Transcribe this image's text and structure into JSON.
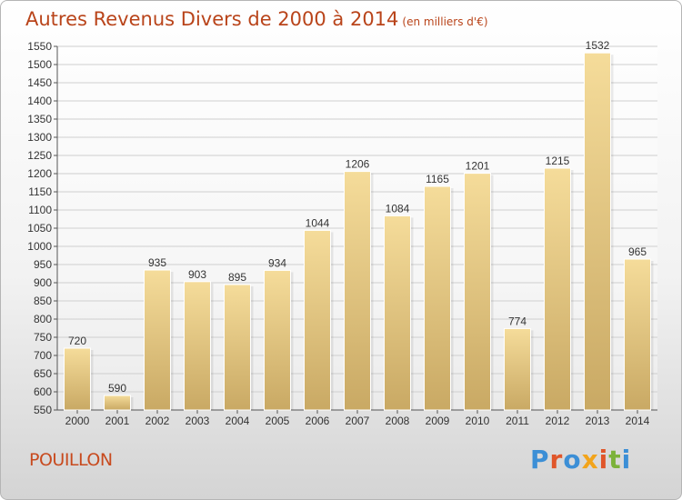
{
  "header": {
    "title": "Autres Revenus Divers de 2000 à 2014",
    "unit": "(en milliers d'€)"
  },
  "footer": {
    "commune": "POUILLON",
    "logo_text": "Proxiti"
  },
  "colors": {
    "title": "#b9441a",
    "bar_light": "#f5dc9a",
    "bar_dark": "#c9a964",
    "grid": "#cfcfcf"
  },
  "chart_data": {
    "type": "bar",
    "categories": [
      "2000",
      "2001",
      "2002",
      "2003",
      "2004",
      "2005",
      "2006",
      "2007",
      "2008",
      "2009",
      "2010",
      "2011",
      "2012",
      "2013",
      "2014"
    ],
    "values": [
      720,
      590,
      935,
      903,
      895,
      934,
      1044,
      1206,
      1084,
      1165,
      1201,
      774,
      1215,
      1532,
      965
    ],
    "ylim": [
      550,
      1550
    ],
    "yticks": [
      550,
      600,
      650,
      700,
      750,
      800,
      850,
      900,
      950,
      1000,
      1050,
      1100,
      1150,
      1200,
      1250,
      1300,
      1350,
      1400,
      1450,
      1500,
      1550
    ],
    "grid": true
  }
}
